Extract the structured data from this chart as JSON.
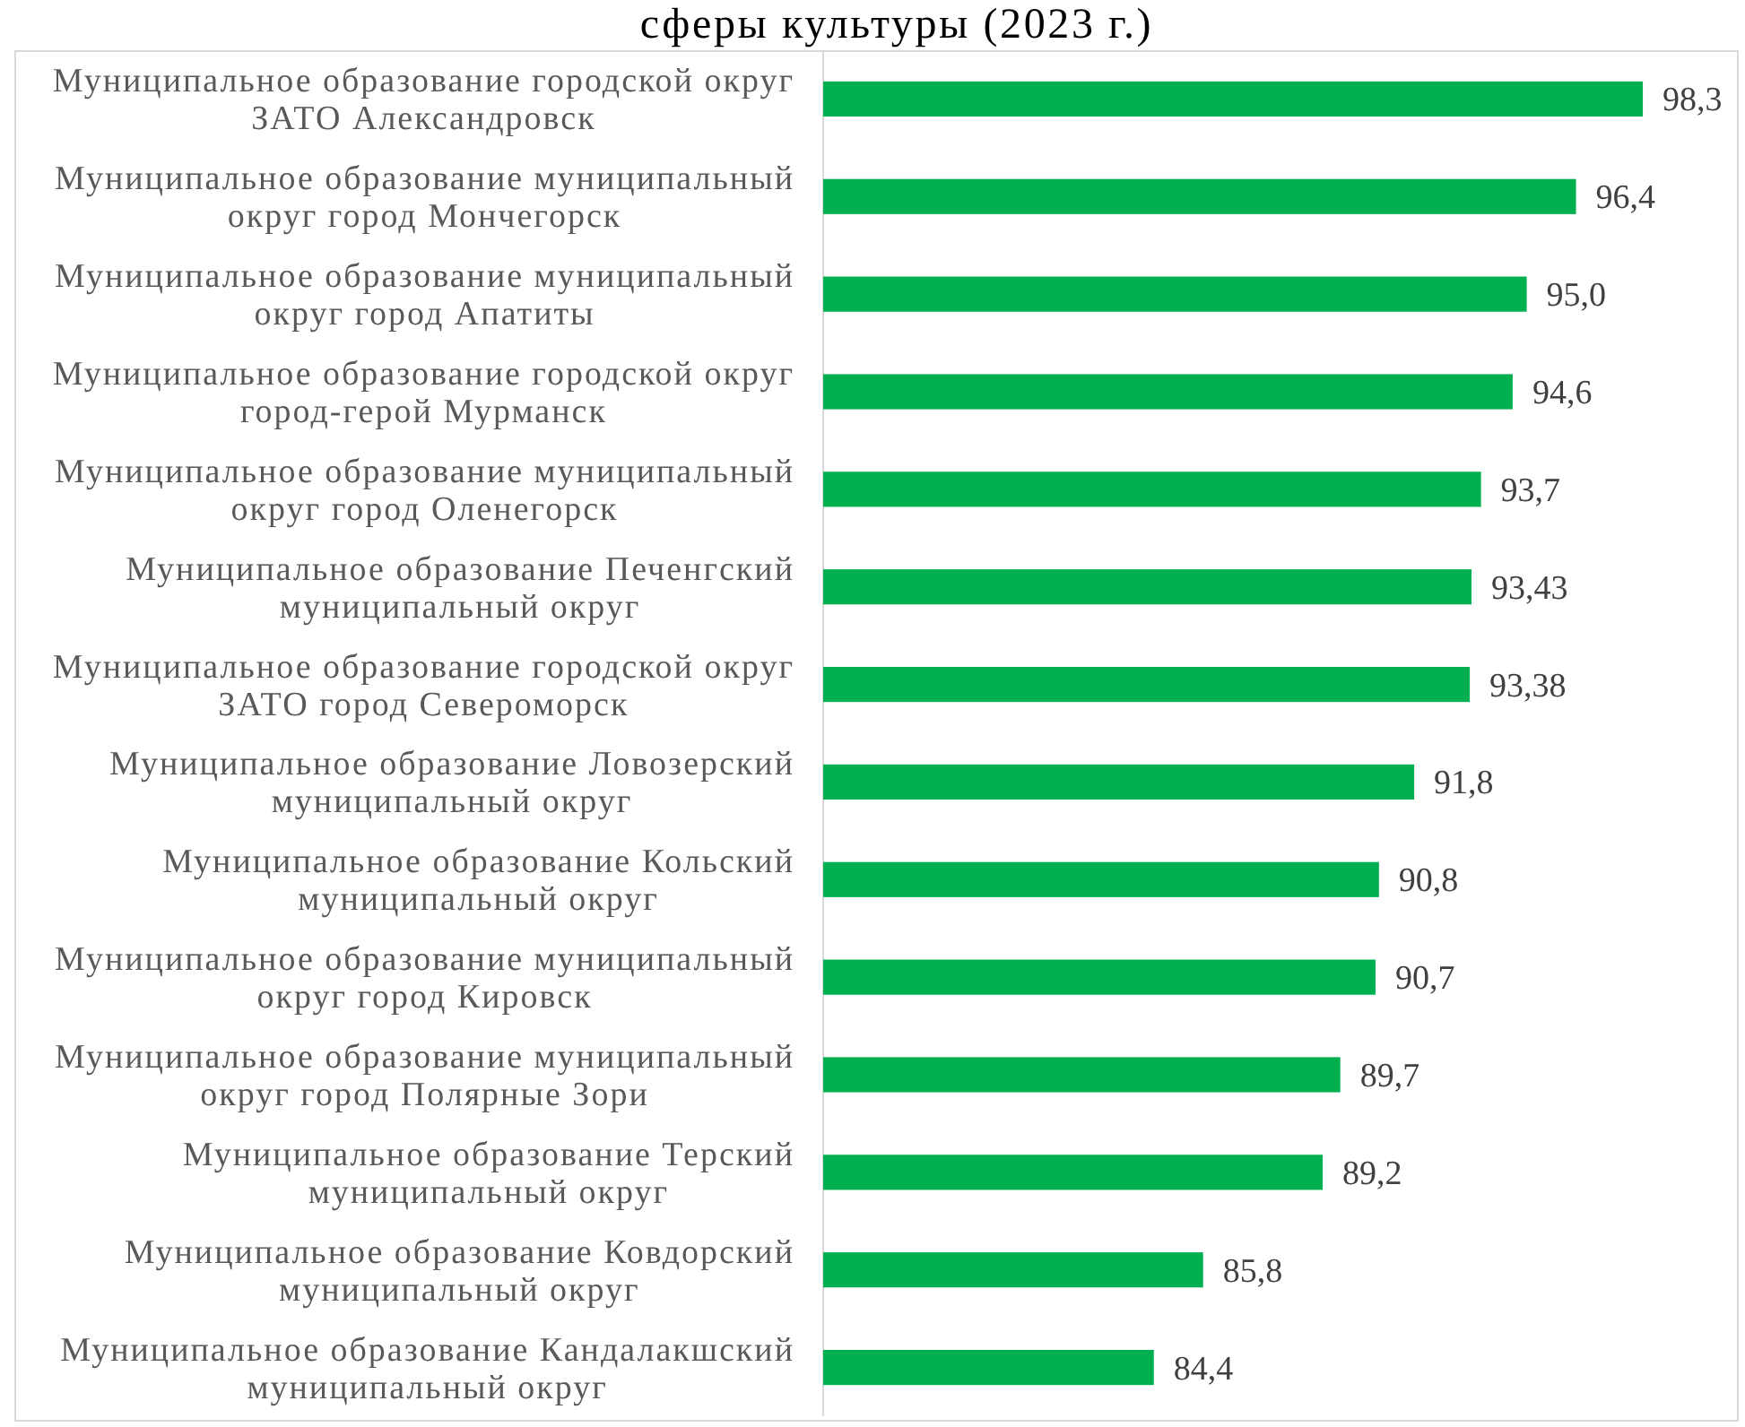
{
  "chart_data": {
    "type": "bar",
    "orientation": "horizontal",
    "title": "сферы культуры (2023 г.)",
    "categories": [
      "Муниципальное образование городской округ ЗАТО Александровск",
      "Муниципальное образование муниципальный округ город Мончегорск",
      "Муниципальное образование муниципальный округ город Апатиты",
      "Муниципальное образование городской округ город-герой Мурманск",
      "Муниципальное образование муниципальный округ город Оленегорск",
      "Муниципальное образование Печенгский муниципальный округ",
      "Муниципальное образование городской округ ЗАТО город Североморск",
      "Муниципальное образование Ловозерский муниципальный округ",
      "Муниципальное образование Кольский муниципальный округ",
      "Муниципальное образование муниципальный округ город Кировск",
      "Муниципальное образование муниципальный округ город Полярные Зори",
      "Муниципальное образование Терский муниципальный округ",
      "Муниципальное образование Ковдорский муниципальный округ",
      "Муниципальное образование Кандалакшский муниципальный округ"
    ],
    "values": [
      98.3,
      96.4,
      95.0,
      94.6,
      93.7,
      93.43,
      93.38,
      91.8,
      90.8,
      90.7,
      89.7,
      89.2,
      85.8,
      84.4
    ],
    "value_labels": [
      "98,3",
      "96,4",
      "95,0",
      "94,6",
      "93,7",
      "93,43",
      "93,38",
      "91,8",
      "90,8",
      "90,7",
      "89,7",
      "89,2",
      "85,8",
      "84,4"
    ],
    "color": "#00b050",
    "xlim": [
      75,
      101
    ],
    "tick_labels": "y"
  }
}
